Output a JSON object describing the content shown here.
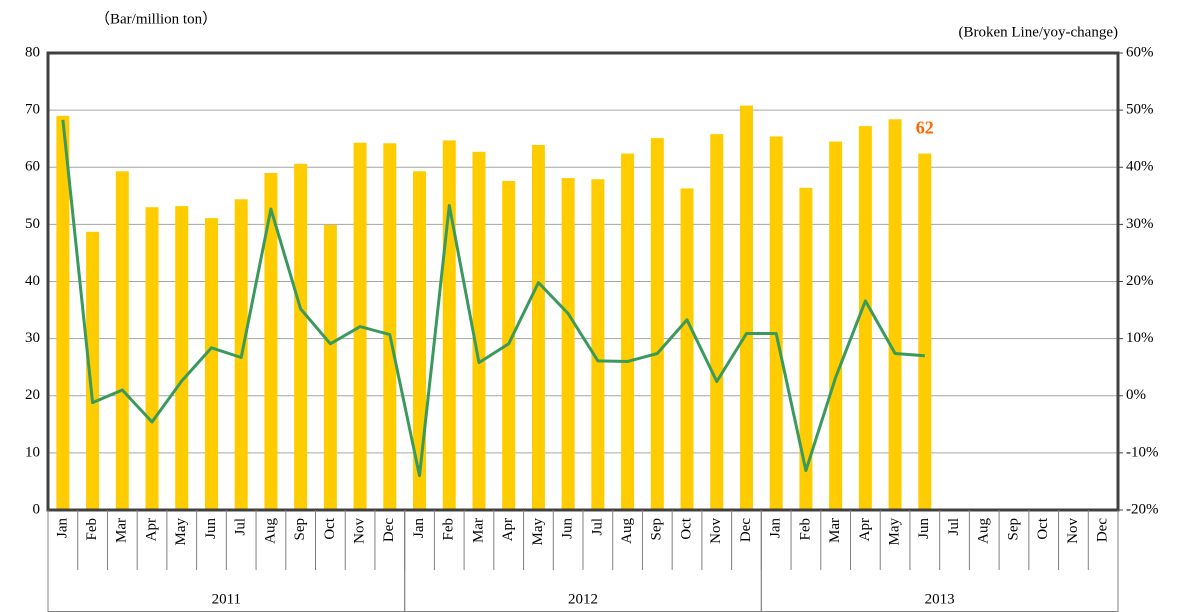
{
  "chart_data": {
    "type": "bar-line",
    "y_label": "（Bar/million ton）",
    "y2_label": "(Broken Line/yoy-change)",
    "categories": [
      "Jan",
      "Feb",
      "Mar",
      "Apr",
      "May",
      "Jun",
      "Jul",
      "Aug",
      "Sep",
      "Oct",
      "Nov",
      "Dec",
      "Jan",
      "Feb",
      "Mar",
      "Apr",
      "May",
      "Jun",
      "Jul",
      "Aug",
      "Sep",
      "Oct",
      "Nov",
      "Dec",
      "Jan",
      "Feb",
      "Mar",
      "Apr",
      "May",
      "Jun",
      "Jul",
      "Aug",
      "Sep",
      "Oct",
      "Nov",
      "Dec"
    ],
    "groups": [
      {
        "label": "2011",
        "span": 12
      },
      {
        "label": "2012",
        "span": 12
      },
      {
        "label": "2013",
        "span": 12
      }
    ],
    "series": [
      {
        "type": "bar",
        "color": "#ffcc00",
        "values": [
          69,
          48.7,
          59.3,
          53,
          53.2,
          51.1,
          54.4,
          59,
          60.6,
          49.9,
          64.3,
          64.2,
          59.3,
          64.7,
          62.7,
          57.6,
          63.9,
          58.1,
          57.9,
          62.4,
          65.1,
          56.3,
          65.8,
          70.8,
          65.4,
          56.4,
          64.5,
          67.2,
          68.4,
          62.4,
          null,
          null,
          null,
          null,
          null,
          null
        ],
        "value_labels": [
          null,
          null,
          null,
          null,
          null,
          null,
          null,
          null,
          null,
          null,
          null,
          null,
          null,
          null,
          null,
          null,
          null,
          null,
          null,
          null,
          null,
          null,
          null,
          null,
          null,
          null,
          null,
          null,
          null,
          "62",
          null,
          null,
          null,
          null,
          null,
          null
        ],
        "label_color": "#ff6600"
      },
      {
        "type": "line",
        "axis": "y2",
        "color": "#3a9a5c",
        "values": [
          48.3,
          -1.2,
          1,
          -4.6,
          2.6,
          8.4,
          6.7,
          32.7,
          15.2,
          9.1,
          12.1,
          10.7,
          -14,
          33.3,
          5.8,
          9.1,
          19.8,
          14.4,
          6.1,
          6,
          7.4,
          13.3,
          2.5,
          10.9,
          10.9,
          -13.1,
          3.2,
          16.6,
          7.4,
          7,
          null,
          null,
          null,
          null,
          null,
          null
        ]
      }
    ],
    "ylim": [
      0,
      80
    ],
    "yticks": [
      0,
      10,
      20,
      30,
      40,
      50,
      60,
      70,
      80
    ],
    "y2lim": [
      -20,
      60
    ],
    "y2ticks": [
      {
        "value": -20,
        "label": "-20%"
      },
      {
        "value": -10,
        "label": "-10%"
      },
      {
        "value": 0,
        "label": "0%"
      },
      {
        "value": 10,
        "label": "10%"
      },
      {
        "value": 20,
        "label": "20%"
      },
      {
        "value": 30,
        "label": "30%"
      },
      {
        "value": 40,
        "label": "40%"
      },
      {
        "value": 50,
        "label": "50%"
      },
      {
        "value": 60,
        "label": "60%"
      }
    ],
    "grid": true
  }
}
